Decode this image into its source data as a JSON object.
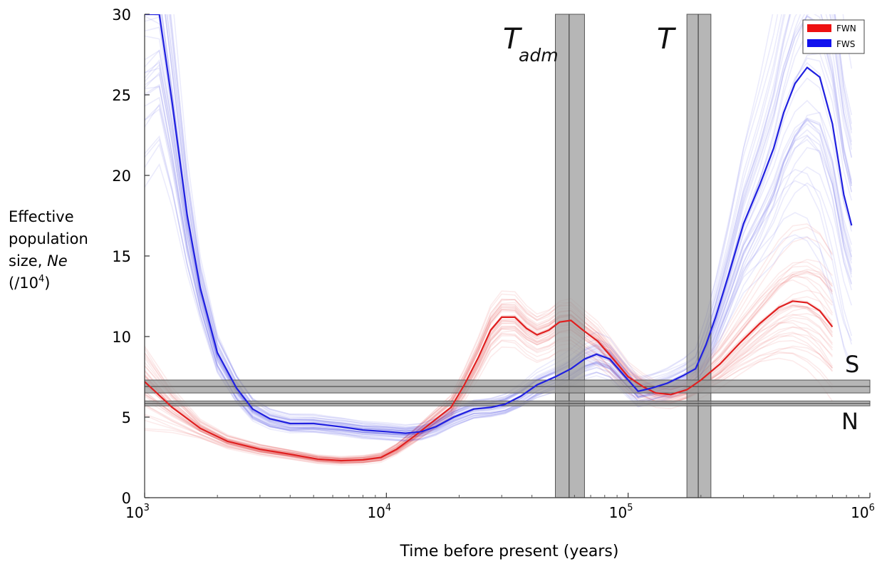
{
  "chart_data": {
    "type": "line",
    "title": "",
    "xlabel": "Time before present (years)",
    "ylabel_lines": [
      "Effective",
      "population",
      "size, ",
      "Ne",
      "(/10",
      "4",
      ")"
    ],
    "x_scale": "log",
    "xlim": [
      1000,
      1000000
    ],
    "ylim": [
      0,
      30
    ],
    "x_tick_labels": [
      {
        "value": 1000,
        "base": "10",
        "exp": "3"
      },
      {
        "value": 10000,
        "base": "10",
        "exp": "4"
      },
      {
        "value": 100000,
        "base": "10",
        "exp": "5"
      },
      {
        "value": 1000000,
        "base": "10",
        "exp": "6"
      }
    ],
    "y_ticks": [
      0,
      5,
      10,
      15,
      20,
      25,
      30
    ],
    "legend": {
      "position": "top-right",
      "entries": [
        {
          "label": "FWN",
          "color": "#ee1111"
        },
        {
          "label": "FWS",
          "color": "#1111ee"
        }
      ]
    },
    "series": [
      {
        "name": "FWN",
        "color": "#e02020",
        "x": [
          1000,
          1300,
          1700,
          2200,
          3000,
          4000,
          5200,
          6500,
          8000,
          9500,
          11000,
          13000,
          15500,
          18500,
          21000,
          24000,
          27000,
          30000,
          34000,
          38000,
          42000,
          47000,
          52000,
          58000,
          65000,
          75000,
          88000,
          100000,
          115000,
          130000,
          150000,
          175000,
          200000,
          240000,
          290000,
          350000,
          420000,
          480000,
          550000,
          620000,
          700000
        ],
        "y": [
          7.2,
          5.6,
          4.3,
          3.5,
          3.0,
          2.7,
          2.4,
          2.3,
          2.35,
          2.5,
          3.0,
          3.8,
          4.7,
          5.6,
          7.0,
          8.7,
          10.4,
          11.2,
          11.2,
          10.5,
          10.1,
          10.4,
          10.9,
          11.0,
          10.4,
          9.7,
          8.5,
          7.5,
          6.9,
          6.5,
          6.4,
          6.7,
          7.3,
          8.3,
          9.6,
          10.8,
          11.8,
          12.2,
          12.1,
          11.6,
          10.6
        ]
      },
      {
        "name": "FWS",
        "color": "#2020e0",
        "x": [
          1000,
          1150,
          1300,
          1500,
          1700,
          2000,
          2400,
          2800,
          3300,
          4000,
          5000,
          6500,
          8000,
          10000,
          12000,
          14000,
          16000,
          19000,
          23000,
          27000,
          31000,
          36000,
          42000,
          50000,
          58000,
          66000,
          74000,
          84000,
          96000,
          110000,
          125000,
          145000,
          170000,
          190000,
          210000,
          230000,
          260000,
          300000,
          350000,
          400000,
          440000,
          490000,
          550000,
          620000,
          700000,
          780000,
          840000
        ],
        "y": [
          30,
          30,
          24.5,
          17.5,
          13.0,
          9.0,
          6.8,
          5.5,
          4.9,
          4.6,
          4.6,
          4.4,
          4.2,
          4.1,
          4.0,
          4.1,
          4.4,
          5.0,
          5.5,
          5.6,
          5.8,
          6.3,
          7.0,
          7.5,
          8.0,
          8.6,
          8.9,
          8.6,
          7.6,
          6.6,
          6.8,
          7.1,
          7.6,
          8.0,
          9.5,
          11.2,
          13.8,
          17.0,
          19.4,
          21.7,
          23.9,
          25.7,
          26.7,
          26.1,
          23.2,
          18.8,
          16.9
        ]
      }
    ],
    "vertical_bands": [
      {
        "label_main": "T",
        "label_sub": "adm",
        "x_from": 50000,
        "x_to": 66000,
        "x_mid": 57000
      },
      {
        "label_main": "T",
        "label_sub": "",
        "x_from": 175000,
        "x_to": 220000,
        "x_mid": 195000
      }
    ],
    "horizontal_bands": [
      {
        "label": "S",
        "y_from": 6.5,
        "y_to": 7.3,
        "y_mid": 6.9
      },
      {
        "label": "N",
        "y_from": 5.7,
        "y_to": 6.0,
        "y_mid": 5.85
      }
    ],
    "bootstrap_replicates": "semi-transparent lines around each mean curve"
  }
}
